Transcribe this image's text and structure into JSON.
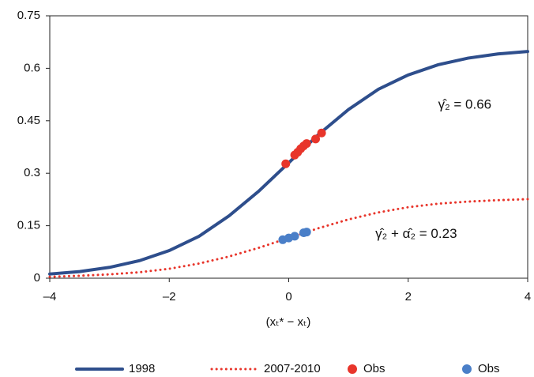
{
  "chart_data": {
    "type": "line",
    "x_label": "(xₜ* − xₜ)",
    "x": [
      -4,
      -3.5,
      -3,
      -2.5,
      -2,
      -1.5,
      -1,
      -0.5,
      0,
      0.5,
      1,
      1.5,
      2,
      2.5,
      3,
      3.5,
      4
    ],
    "series": [
      {
        "name": "1998",
        "type": "line",
        "style": "solid",
        "color": "#2e4e8c",
        "values": [
          0.012,
          0.019,
          0.031,
          0.05,
          0.079,
          0.12,
          0.178,
          0.249,
          0.33,
          0.411,
          0.482,
          0.54,
          0.581,
          0.61,
          0.629,
          0.641,
          0.648
        ]
      },
      {
        "name": "2007-2010",
        "type": "line",
        "style": "dotted",
        "color": "#e8352b",
        "values": [
          0.004,
          0.007,
          0.011,
          0.017,
          0.027,
          0.042,
          0.062,
          0.087,
          0.115,
          0.143,
          0.168,
          0.188,
          0.203,
          0.213,
          0.219,
          0.223,
          0.226
        ]
      },
      {
        "name": "Obs",
        "type": "scatter",
        "color": "#e8352b",
        "x": [
          -0.05,
          0.1,
          0.15,
          0.2,
          0.25,
          0.3,
          0.45,
          0.55
        ],
        "values": [
          0.327,
          0.352,
          0.36,
          0.37,
          0.378,
          0.385,
          0.398,
          0.415
        ]
      },
      {
        "name": "Obs",
        "type": "scatter",
        "color": "#4a7fc8",
        "x": [
          -0.1,
          0,
          0.1,
          0.25,
          0.3
        ],
        "values": [
          0.11,
          0.115,
          0.12,
          0.13,
          0.132
        ]
      }
    ],
    "annotations": [
      {
        "text": "γ̂₂ = 0.66",
        "x": 2.5,
        "y": 0.495
      },
      {
        "text": "γ̂₂ + α̂₂ = 0.23",
        "x": 1.45,
        "y": 0.125
      }
    ],
    "xlim": [
      -4,
      4
    ],
    "xticks": [
      {
        "value": -4,
        "label": "–4"
      },
      {
        "value": -2,
        "label": "–2"
      },
      0,
      2,
      4
    ],
    "ylim": [
      0,
      0.75
    ],
    "yticks": [
      0,
      0.15,
      0.3,
      0.45,
      0.6,
      0.75
    ],
    "grid": false,
    "legend": "bottom"
  }
}
